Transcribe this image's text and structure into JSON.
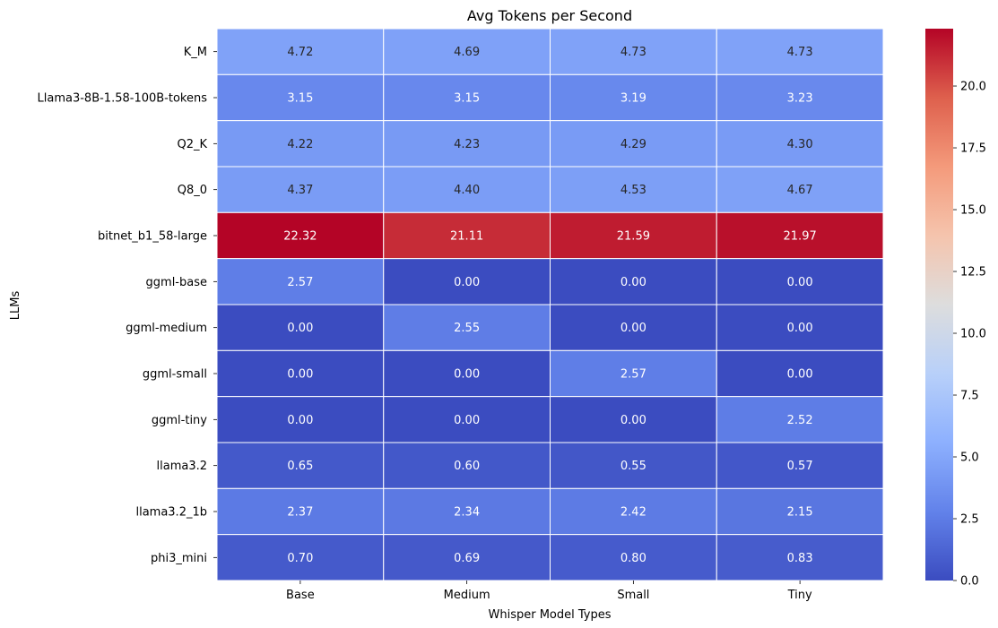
{
  "chart_data": {
    "type": "heatmap",
    "title": "Avg Tokens per Second",
    "xlabel": "Whisper Model Types",
    "ylabel": "LLMs",
    "x_categories": [
      "Base",
      "Medium",
      "Small",
      "Tiny"
    ],
    "y_categories": [
      "K_M",
      "Llama3-8B-1.58-100B-tokens",
      "Q2_K",
      "Q8_0",
      "bitnet_b1_58-large",
      "ggml-base",
      "ggml-medium",
      "ggml-small",
      "ggml-tiny",
      "llama3.2",
      "llama3.2_1b",
      "phi3_mini"
    ],
    "values": [
      [
        4.72,
        4.69,
        4.73,
        4.73
      ],
      [
        3.15,
        3.15,
        3.19,
        3.23
      ],
      [
        4.22,
        4.23,
        4.29,
        4.3
      ],
      [
        4.37,
        4.4,
        4.53,
        4.67
      ],
      [
        22.32,
        21.11,
        21.59,
        21.97
      ],
      [
        2.57,
        0.0,
        0.0,
        0.0
      ],
      [
        0.0,
        2.55,
        0.0,
        0.0
      ],
      [
        0.0,
        0.0,
        2.57,
        0.0
      ],
      [
        0.0,
        0.0,
        0.0,
        2.52
      ],
      [
        0.65,
        0.6,
        0.55,
        0.57
      ],
      [
        2.37,
        2.34,
        2.42,
        2.15
      ],
      [
        0.7,
        0.69,
        0.8,
        0.83
      ]
    ],
    "value_labels": [
      [
        "4.72",
        "4.69",
        "4.73",
        "4.73"
      ],
      [
        "3.15",
        "3.15",
        "3.19",
        "3.23"
      ],
      [
        "4.22",
        "4.23",
        "4.29",
        "4.30"
      ],
      [
        "4.37",
        "4.40",
        "4.53",
        "4.67"
      ],
      [
        "22.32",
        "21.11",
        "21.59",
        "21.97"
      ],
      [
        "2.57",
        "0.00",
        "0.00",
        "0.00"
      ],
      [
        "0.00",
        "2.55",
        "0.00",
        "0.00"
      ],
      [
        "0.00",
        "0.00",
        "2.57",
        "0.00"
      ],
      [
        "0.00",
        "0.00",
        "0.00",
        "2.52"
      ],
      [
        "0.65",
        "0.60",
        "0.55",
        "0.57"
      ],
      [
        "2.37",
        "2.34",
        "2.42",
        "2.15"
      ],
      [
        "0.70",
        "0.69",
        "0.80",
        "0.83"
      ]
    ],
    "colormap": "coolwarm",
    "vmin": 0.0,
    "vmax": 22.32,
    "colorbar_ticks": [
      "0.0",
      "2.5",
      "5.0",
      "7.5",
      "10.0",
      "12.5",
      "15.0",
      "17.5",
      "20.0"
    ],
    "colorbar_tick_values": [
      0.0,
      2.5,
      5.0,
      7.5,
      10.0,
      12.5,
      15.0,
      17.5,
      20.0
    ],
    "grid": false,
    "legend": "colorbar-right"
  }
}
